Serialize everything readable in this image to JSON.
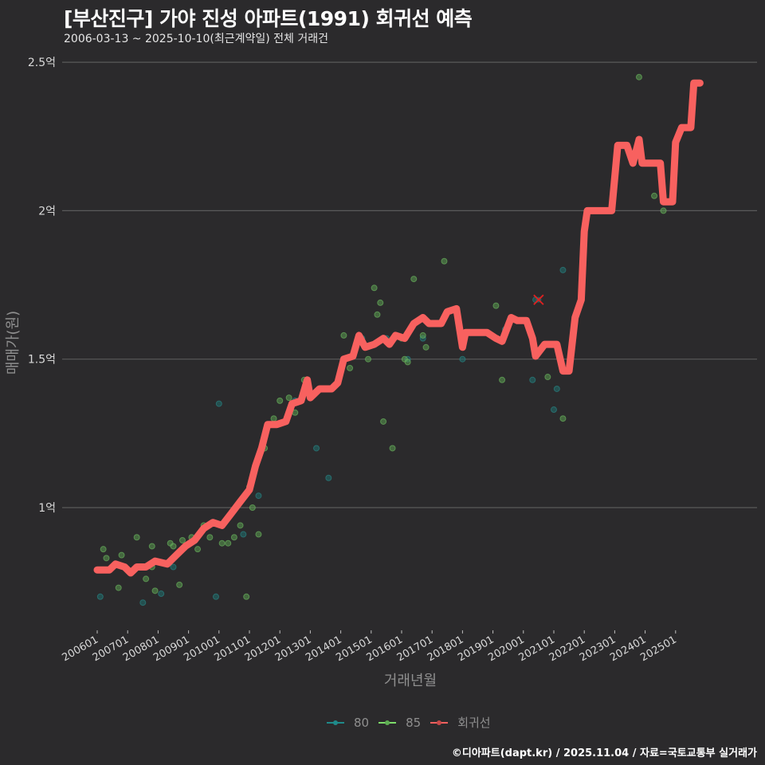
{
  "header": {
    "title": "[부산진구] 가야 진성 아파트(1991) 회귀선 예측",
    "subtitle": "2006-03-13 ~ 2025-10-10(최근계약일) 전체 거래건"
  },
  "axes": {
    "y_title": "매매가(원)",
    "x_title": "거래년월",
    "y_ticks": [
      "1억",
      "1.5억",
      "2억",
      "2.5억"
    ],
    "x_ticks": [
      "200601",
      "200701",
      "200801",
      "200901",
      "201001",
      "201101",
      "201201",
      "201301",
      "201401",
      "201501",
      "201601",
      "201701",
      "201801",
      "201901",
      "202001",
      "202101",
      "202201",
      "202301",
      "202401",
      "202501"
    ]
  },
  "legend": {
    "items": [
      {
        "label": "80",
        "color": "#1f8a8a"
      },
      {
        "label": "85",
        "color": "#7ddc6a"
      },
      {
        "label": "회귀선",
        "color": "#f8615f"
      }
    ]
  },
  "caption": "©디아파트(dapt.kr) / 2025.11.04 / 자료=국토교통부 실거래가",
  "colors": {
    "background": "#2b2a2c",
    "grid": "#5a5a5a",
    "regression": "#f8615f",
    "series_80": "#1f8a8a",
    "series_85": "#7ddc6a",
    "outlier_marker": "#e02020"
  },
  "chart_data": {
    "type": "scatter+line",
    "title": "[부산진구] 가야 진성 아파트(1991) 회귀선 예측",
    "subtitle": "2006-03-13 ~ 2025-10-10(최근계약일) 전체 거래건",
    "xlabel": "거래년월",
    "ylabel": "매매가(원)",
    "ylim_eok": [
      0.6,
      2.55
    ],
    "y_ticks_eok": [
      1.0,
      1.5,
      2.0,
      2.5
    ],
    "x_ticks": [
      "200601",
      "200701",
      "200801",
      "200901",
      "201001",
      "201101",
      "201201",
      "201301",
      "201401",
      "201501",
      "201601",
      "201701",
      "201801",
      "201901",
      "202001",
      "202101",
      "202201",
      "202301",
      "202401",
      "202501"
    ],
    "grid": "horizontal major only",
    "legend_position": "bottom",
    "regression_line": {
      "name": "회귀선",
      "points_year_eok": [
        [
          2006.0,
          0.79
        ],
        [
          2006.4,
          0.79
        ],
        [
          2006.6,
          0.81
        ],
        [
          2006.9,
          0.8
        ],
        [
          2007.1,
          0.78
        ],
        [
          2007.3,
          0.8
        ],
        [
          2007.6,
          0.8
        ],
        [
          2007.9,
          0.82
        ],
        [
          2008.3,
          0.81
        ],
        [
          2008.6,
          0.84
        ],
        [
          2008.9,
          0.87
        ],
        [
          2009.2,
          0.89
        ],
        [
          2009.5,
          0.93
        ],
        [
          2009.8,
          0.95
        ],
        [
          2010.1,
          0.94
        ],
        [
          2010.4,
          0.98
        ],
        [
          2010.7,
          1.02
        ],
        [
          2011.0,
          1.06
        ],
        [
          2011.2,
          1.14
        ],
        [
          2011.4,
          1.2
        ],
        [
          2011.6,
          1.28
        ],
        [
          2011.9,
          1.28
        ],
        [
          2012.2,
          1.29
        ],
        [
          2012.4,
          1.35
        ],
        [
          2012.7,
          1.36
        ],
        [
          2012.9,
          1.43
        ],
        [
          2013.0,
          1.37
        ],
        [
          2013.3,
          1.4
        ],
        [
          2013.7,
          1.4
        ],
        [
          2013.9,
          1.42
        ],
        [
          2014.1,
          1.5
        ],
        [
          2014.4,
          1.51
        ],
        [
          2014.6,
          1.58
        ],
        [
          2014.8,
          1.54
        ],
        [
          2015.1,
          1.55
        ],
        [
          2015.4,
          1.57
        ],
        [
          2015.6,
          1.55
        ],
        [
          2015.8,
          1.58
        ],
        [
          2016.1,
          1.57
        ],
        [
          2016.4,
          1.62
        ],
        [
          2016.7,
          1.64
        ],
        [
          2016.9,
          1.62
        ],
        [
          2017.3,
          1.62
        ],
        [
          2017.5,
          1.66
        ],
        [
          2017.8,
          1.67
        ],
        [
          2018.0,
          1.54
        ],
        [
          2018.1,
          1.59
        ],
        [
          2018.5,
          1.59
        ],
        [
          2018.8,
          1.59
        ],
        [
          2019.1,
          1.57
        ],
        [
          2019.3,
          1.56
        ],
        [
          2019.6,
          1.64
        ],
        [
          2019.8,
          1.63
        ],
        [
          2020.1,
          1.63
        ],
        [
          2020.3,
          1.57
        ],
        [
          2020.4,
          1.51
        ],
        [
          2020.7,
          1.55
        ],
        [
          2021.1,
          1.55
        ],
        [
          2021.3,
          1.46
        ],
        [
          2021.5,
          1.46
        ],
        [
          2021.7,
          1.64
        ],
        [
          2021.9,
          1.7
        ],
        [
          2022.0,
          1.93
        ],
        [
          2022.1,
          2.0
        ],
        [
          2022.5,
          2.0
        ],
        [
          2022.9,
          2.0
        ],
        [
          2023.1,
          2.22
        ],
        [
          2023.4,
          2.22
        ],
        [
          2023.6,
          2.16
        ],
        [
          2023.8,
          2.24
        ],
        [
          2023.9,
          2.16
        ],
        [
          2024.3,
          2.16
        ],
        [
          2024.5,
          2.16
        ],
        [
          2024.6,
          2.03
        ],
        [
          2024.9,
          2.03
        ],
        [
          2025.0,
          2.23
        ],
        [
          2025.2,
          2.28
        ],
        [
          2025.5,
          2.28
        ],
        [
          2025.6,
          2.43
        ],
        [
          2025.8,
          2.43
        ]
      ]
    },
    "series": [
      {
        "name": "80",
        "points_year_eok": [
          [
            2006.1,
            0.7
          ],
          [
            2007.5,
            0.68
          ],
          [
            2008.1,
            0.71
          ],
          [
            2008.5,
            0.8
          ],
          [
            2009.9,
            0.7
          ],
          [
            2010.0,
            1.35
          ],
          [
            2010.8,
            0.91
          ],
          [
            2011.3,
            1.04
          ],
          [
            2012.5,
            1.36
          ],
          [
            2013.2,
            1.2
          ],
          [
            2013.6,
            1.1
          ],
          [
            2014.7,
            1.57
          ],
          [
            2015.5,
            1.57
          ],
          [
            2016.2,
            1.5
          ],
          [
            2016.7,
            1.57
          ],
          [
            2018.0,
            1.5
          ],
          [
            2019.4,
            1.6
          ],
          [
            2020.3,
            1.43
          ],
          [
            2020.4,
            1.7
          ],
          [
            2021.0,
            1.33
          ],
          [
            2021.1,
            1.4
          ],
          [
            2021.3,
            1.8
          ]
        ]
      },
      {
        "name": "85",
        "points_year_eok": [
          [
            2006.2,
            0.86
          ],
          [
            2006.3,
            0.83
          ],
          [
            2006.7,
            0.73
          ],
          [
            2006.8,
            0.84
          ],
          [
            2007.3,
            0.9
          ],
          [
            2007.6,
            0.76
          ],
          [
            2007.8,
            0.87
          ],
          [
            2007.8,
            0.8
          ],
          [
            2007.9,
            0.72
          ],
          [
            2008.4,
            0.88
          ],
          [
            2008.5,
            0.87
          ],
          [
            2008.7,
            0.74
          ],
          [
            2008.8,
            0.89
          ],
          [
            2009.1,
            0.9
          ],
          [
            2009.3,
            0.86
          ],
          [
            2009.5,
            0.94
          ],
          [
            2009.7,
            0.9
          ],
          [
            2010.1,
            0.88
          ],
          [
            2010.3,
            0.88
          ],
          [
            2010.5,
            0.9
          ],
          [
            2010.7,
            0.94
          ],
          [
            2010.9,
            0.7
          ],
          [
            2011.0,
            1.07
          ],
          [
            2011.1,
            1.0
          ],
          [
            2011.3,
            0.91
          ],
          [
            2011.5,
            1.2
          ],
          [
            2011.8,
            1.3
          ],
          [
            2012.0,
            1.36
          ],
          [
            2012.3,
            1.37
          ],
          [
            2012.5,
            1.32
          ],
          [
            2012.8,
            1.43
          ],
          [
            2013.0,
            1.38
          ],
          [
            2014.1,
            1.58
          ],
          [
            2014.3,
            1.47
          ],
          [
            2014.5,
            1.55
          ],
          [
            2014.9,
            1.5
          ],
          [
            2015.1,
            1.74
          ],
          [
            2015.2,
            1.65
          ],
          [
            2015.3,
            1.69
          ],
          [
            2015.4,
            1.29
          ],
          [
            2015.7,
            1.2
          ],
          [
            2016.0,
            1.57
          ],
          [
            2016.1,
            1.5
          ],
          [
            2016.2,
            1.49
          ],
          [
            2016.4,
            1.77
          ],
          [
            2016.7,
            1.58
          ],
          [
            2016.8,
            1.54
          ],
          [
            2017.4,
            1.83
          ],
          [
            2019.1,
            1.68
          ],
          [
            2019.3,
            1.43
          ],
          [
            2020.8,
            1.44
          ],
          [
            2021.3,
            1.3
          ],
          [
            2023.8,
            2.45
          ],
          [
            2024.3,
            2.05
          ],
          [
            2024.6,
            2.0
          ]
        ]
      }
    ],
    "annotations": [
      {
        "type": "x-marker",
        "year": 2020.5,
        "eok": 1.7,
        "note": "outlier marked with red X"
      }
    ]
  }
}
